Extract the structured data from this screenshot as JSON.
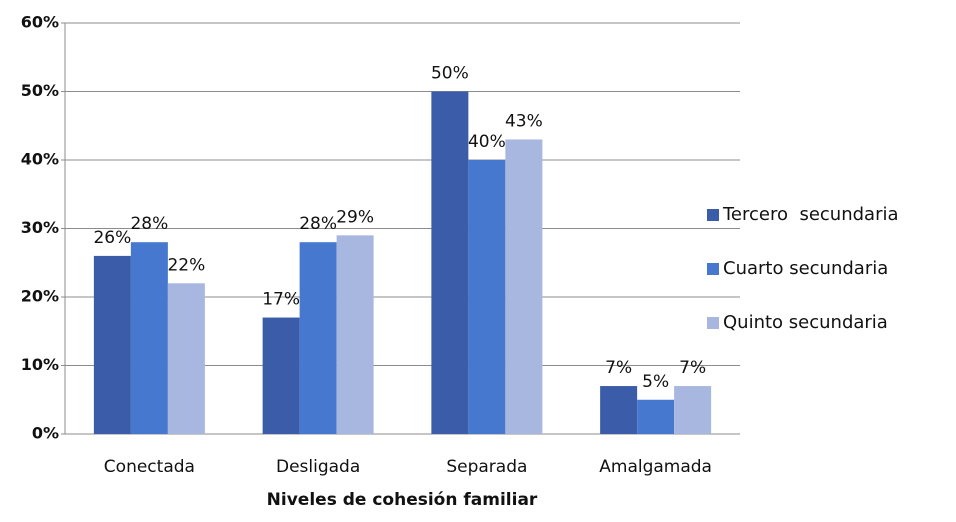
{
  "chart_data": {
    "type": "bar",
    "x_label": "Niveles de cohesión familiar",
    "categories": [
      "Conectada",
      "Desligada",
      "Separada",
      "Amalgamada"
    ],
    "series": [
      {
        "name": "Tercero  secundaria",
        "color": "#3b5ca8",
        "values": [
          26,
          17,
          50,
          7
        ],
        "value_labels": [
          "26%",
          "17%",
          "50%",
          "7%"
        ]
      },
      {
        "name": "Cuarto secundaria",
        "color": "#4678d0",
        "values": [
          28,
          28,
          40,
          5
        ],
        "value_labels": [
          "28%",
          "28%",
          "40%",
          "5%"
        ]
      },
      {
        "name": "Quinto secundaria",
        "color": "#a7b7df",
        "values": [
          22,
          29,
          43,
          7
        ],
        "value_labels": [
          "22%",
          "29%",
          "43%",
          "7%"
        ]
      }
    ],
    "ylim": [
      0,
      60
    ],
    "yticks": [
      {
        "value": 0,
        "label": "0%"
      },
      {
        "value": 10,
        "label": "10%"
      },
      {
        "value": 20,
        "label": "20%"
      },
      {
        "value": 30,
        "label": "30%"
      },
      {
        "value": 40,
        "label": "40%"
      },
      {
        "value": 50,
        "label": "50%"
      },
      {
        "value": 60,
        "label": "60%"
      }
    ],
    "grid": true,
    "legend": "right"
  }
}
